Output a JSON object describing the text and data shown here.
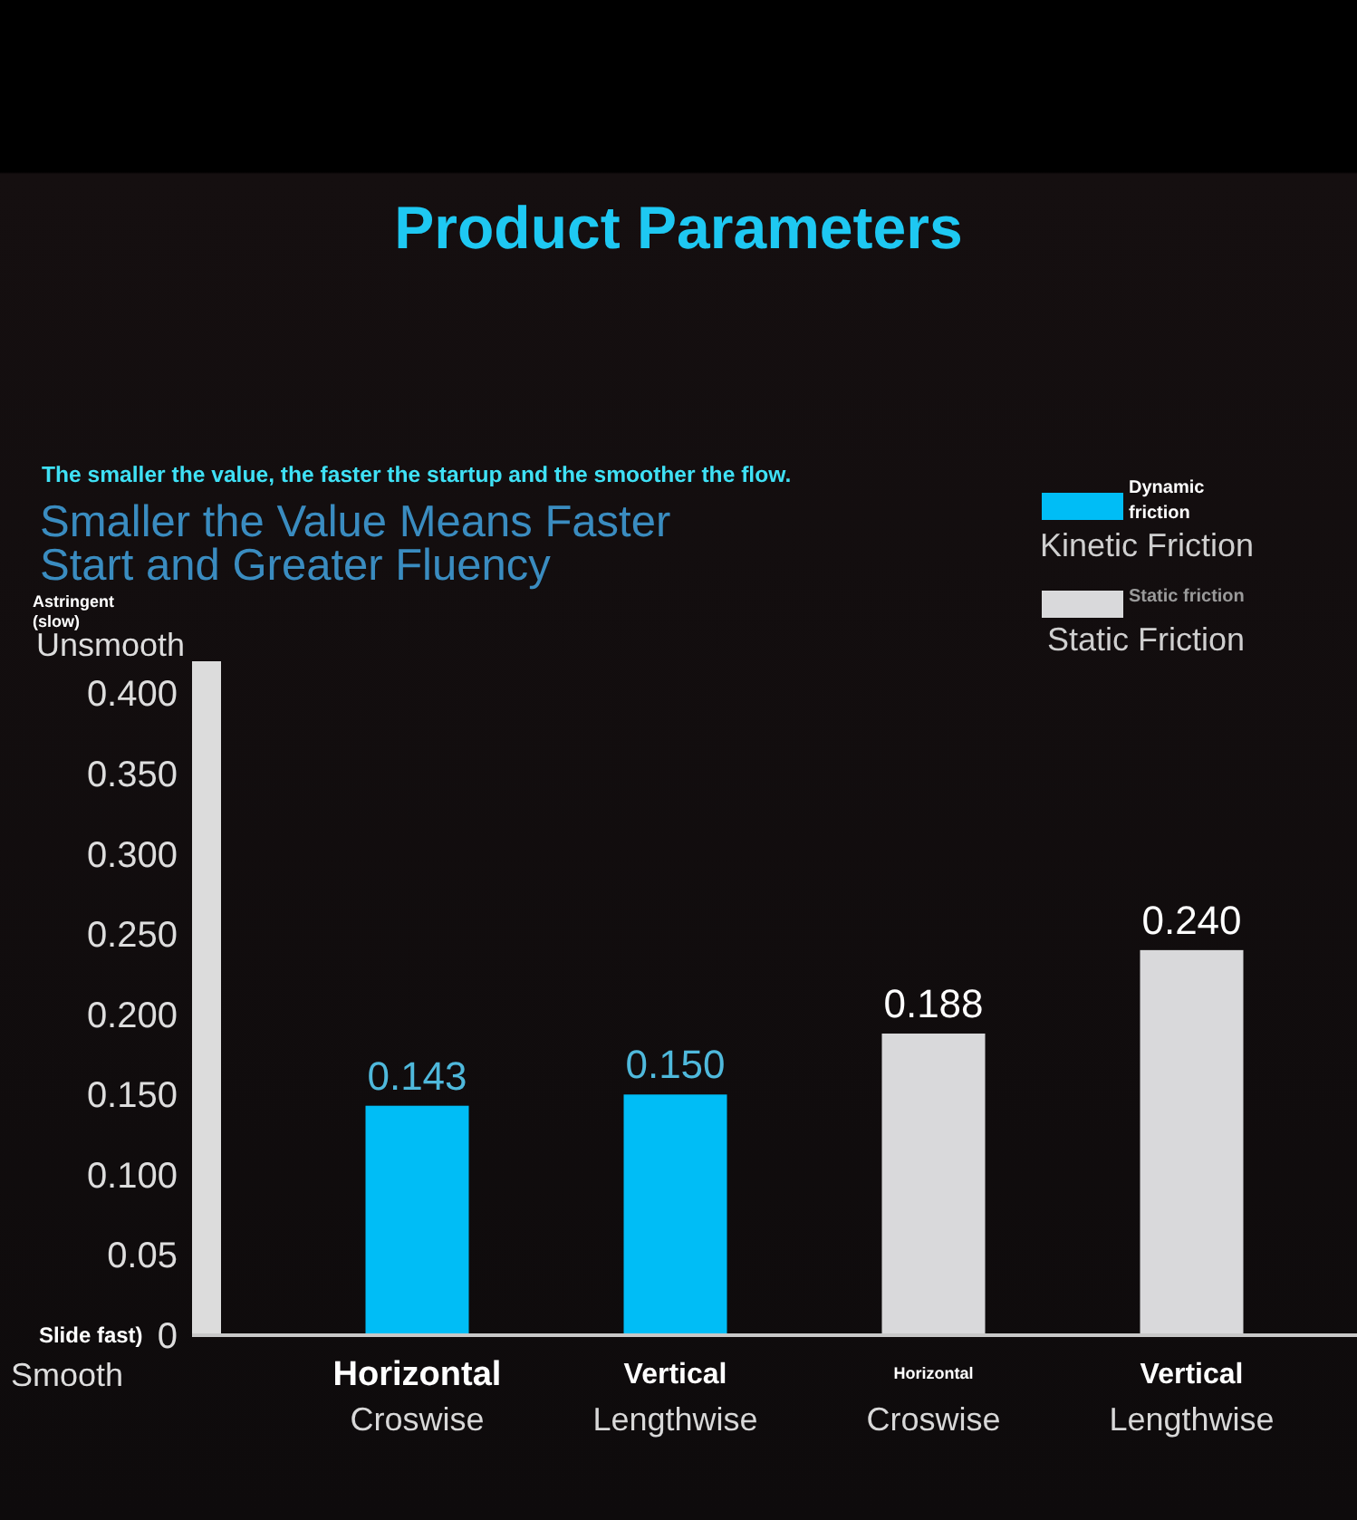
{
  "chart_data": {
    "type": "bar",
    "title": "Product Parameters",
    "subtitle": "Smaller the Value Means Faster Start and Greater Fluency",
    "annotations": [
      "The smaller the value, the faster the startup and the smoother the flow.",
      "Astringent (slow)",
      "Unsmooth",
      "Slide fast)",
      "Smooth",
      "Dynamic friction",
      "Static friction"
    ],
    "categories": [
      "Horizontal\nCroswise",
      "Vertical\nLengthwise",
      "Horizontal\nCroswise",
      "Vertical\nLengthwise"
    ],
    "series": [
      {
        "name": "Kinetic Friction",
        "color": "#00bdf6",
        "values": [
          0.143,
          0.15,
          null,
          null
        ],
        "value_labels": [
          "0.143",
          "0.150",
          null,
          null
        ]
      },
      {
        "name": "Static Friction",
        "color": "#d9d9db",
        "values": [
          null,
          null,
          0.188,
          0.24
        ],
        "value_labels": [
          null,
          null,
          "0.188",
          "0.240"
        ]
      }
    ],
    "ylim": [
      0,
      0.42
    ],
    "yticks": [
      0,
      0.05,
      {
        "value": 0.1,
        "label": "0.100"
      },
      {
        "value": 0.15,
        "label": "0.150"
      },
      {
        "value": 0.2,
        "label": "0.200"
      },
      {
        "value": 0.25,
        "label": "0.250"
      },
      {
        "value": 0.3,
        "label": "0.300"
      },
      {
        "value": 0.35,
        "label": "0.350"
      },
      {
        "value": 0.4,
        "label": "0.400"
      }
    ],
    "legend": "top right"
  }
}
